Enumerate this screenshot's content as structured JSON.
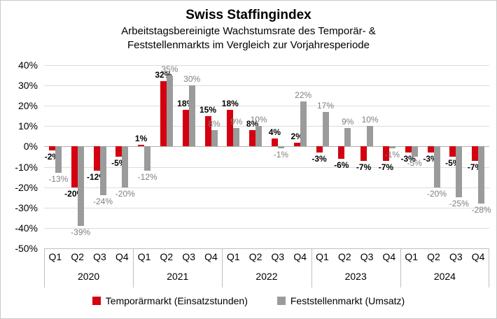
{
  "chart_data": {
    "type": "bar",
    "title": "Swiss Staffingindex",
    "subtitle": "Arbeitstagsbereinigte Wachstumsrate des Temporär- & Feststellenmarkts im Vergleich zur Vorjahresperiode",
    "years": [
      "2020",
      "2021",
      "2022",
      "2023",
      "2024"
    ],
    "quarters": [
      "Q1",
      "Q2",
      "Q3",
      "Q4"
    ],
    "series": [
      {
        "name": "Temporärmarkt (Einsatzstunden)",
        "color": "#d40010",
        "label_style": "bold-black",
        "values": [
          -2,
          -20,
          -12,
          -5,
          1,
          32,
          18,
          15,
          18,
          8,
          4,
          2,
          -3,
          -6,
          -7,
          -7,
          -3,
          -3,
          -5,
          -7
        ]
      },
      {
        "name": "Feststellenmarkt (Umsatz)",
        "color": "#9b9b9b",
        "label_style": "gray",
        "values": [
          -13,
          -39,
          -24,
          -20,
          -12,
          35,
          30,
          8,
          9,
          10,
          -1,
          22,
          17,
          9,
          10,
          -1,
          -5,
          -20,
          -25,
          -28
        ]
      }
    ],
    "ylim": [
      -50,
      40
    ],
    "ytick_step": 10,
    "ytick_labels": [
      "40%",
      "30%",
      "20%",
      "10%",
      "0%",
      "-10%",
      "-20%",
      "-30%",
      "-40%",
      "-50%"
    ],
    "value_suffix": "%",
    "grid": "horizontal",
    "legend_position": "bottom"
  }
}
